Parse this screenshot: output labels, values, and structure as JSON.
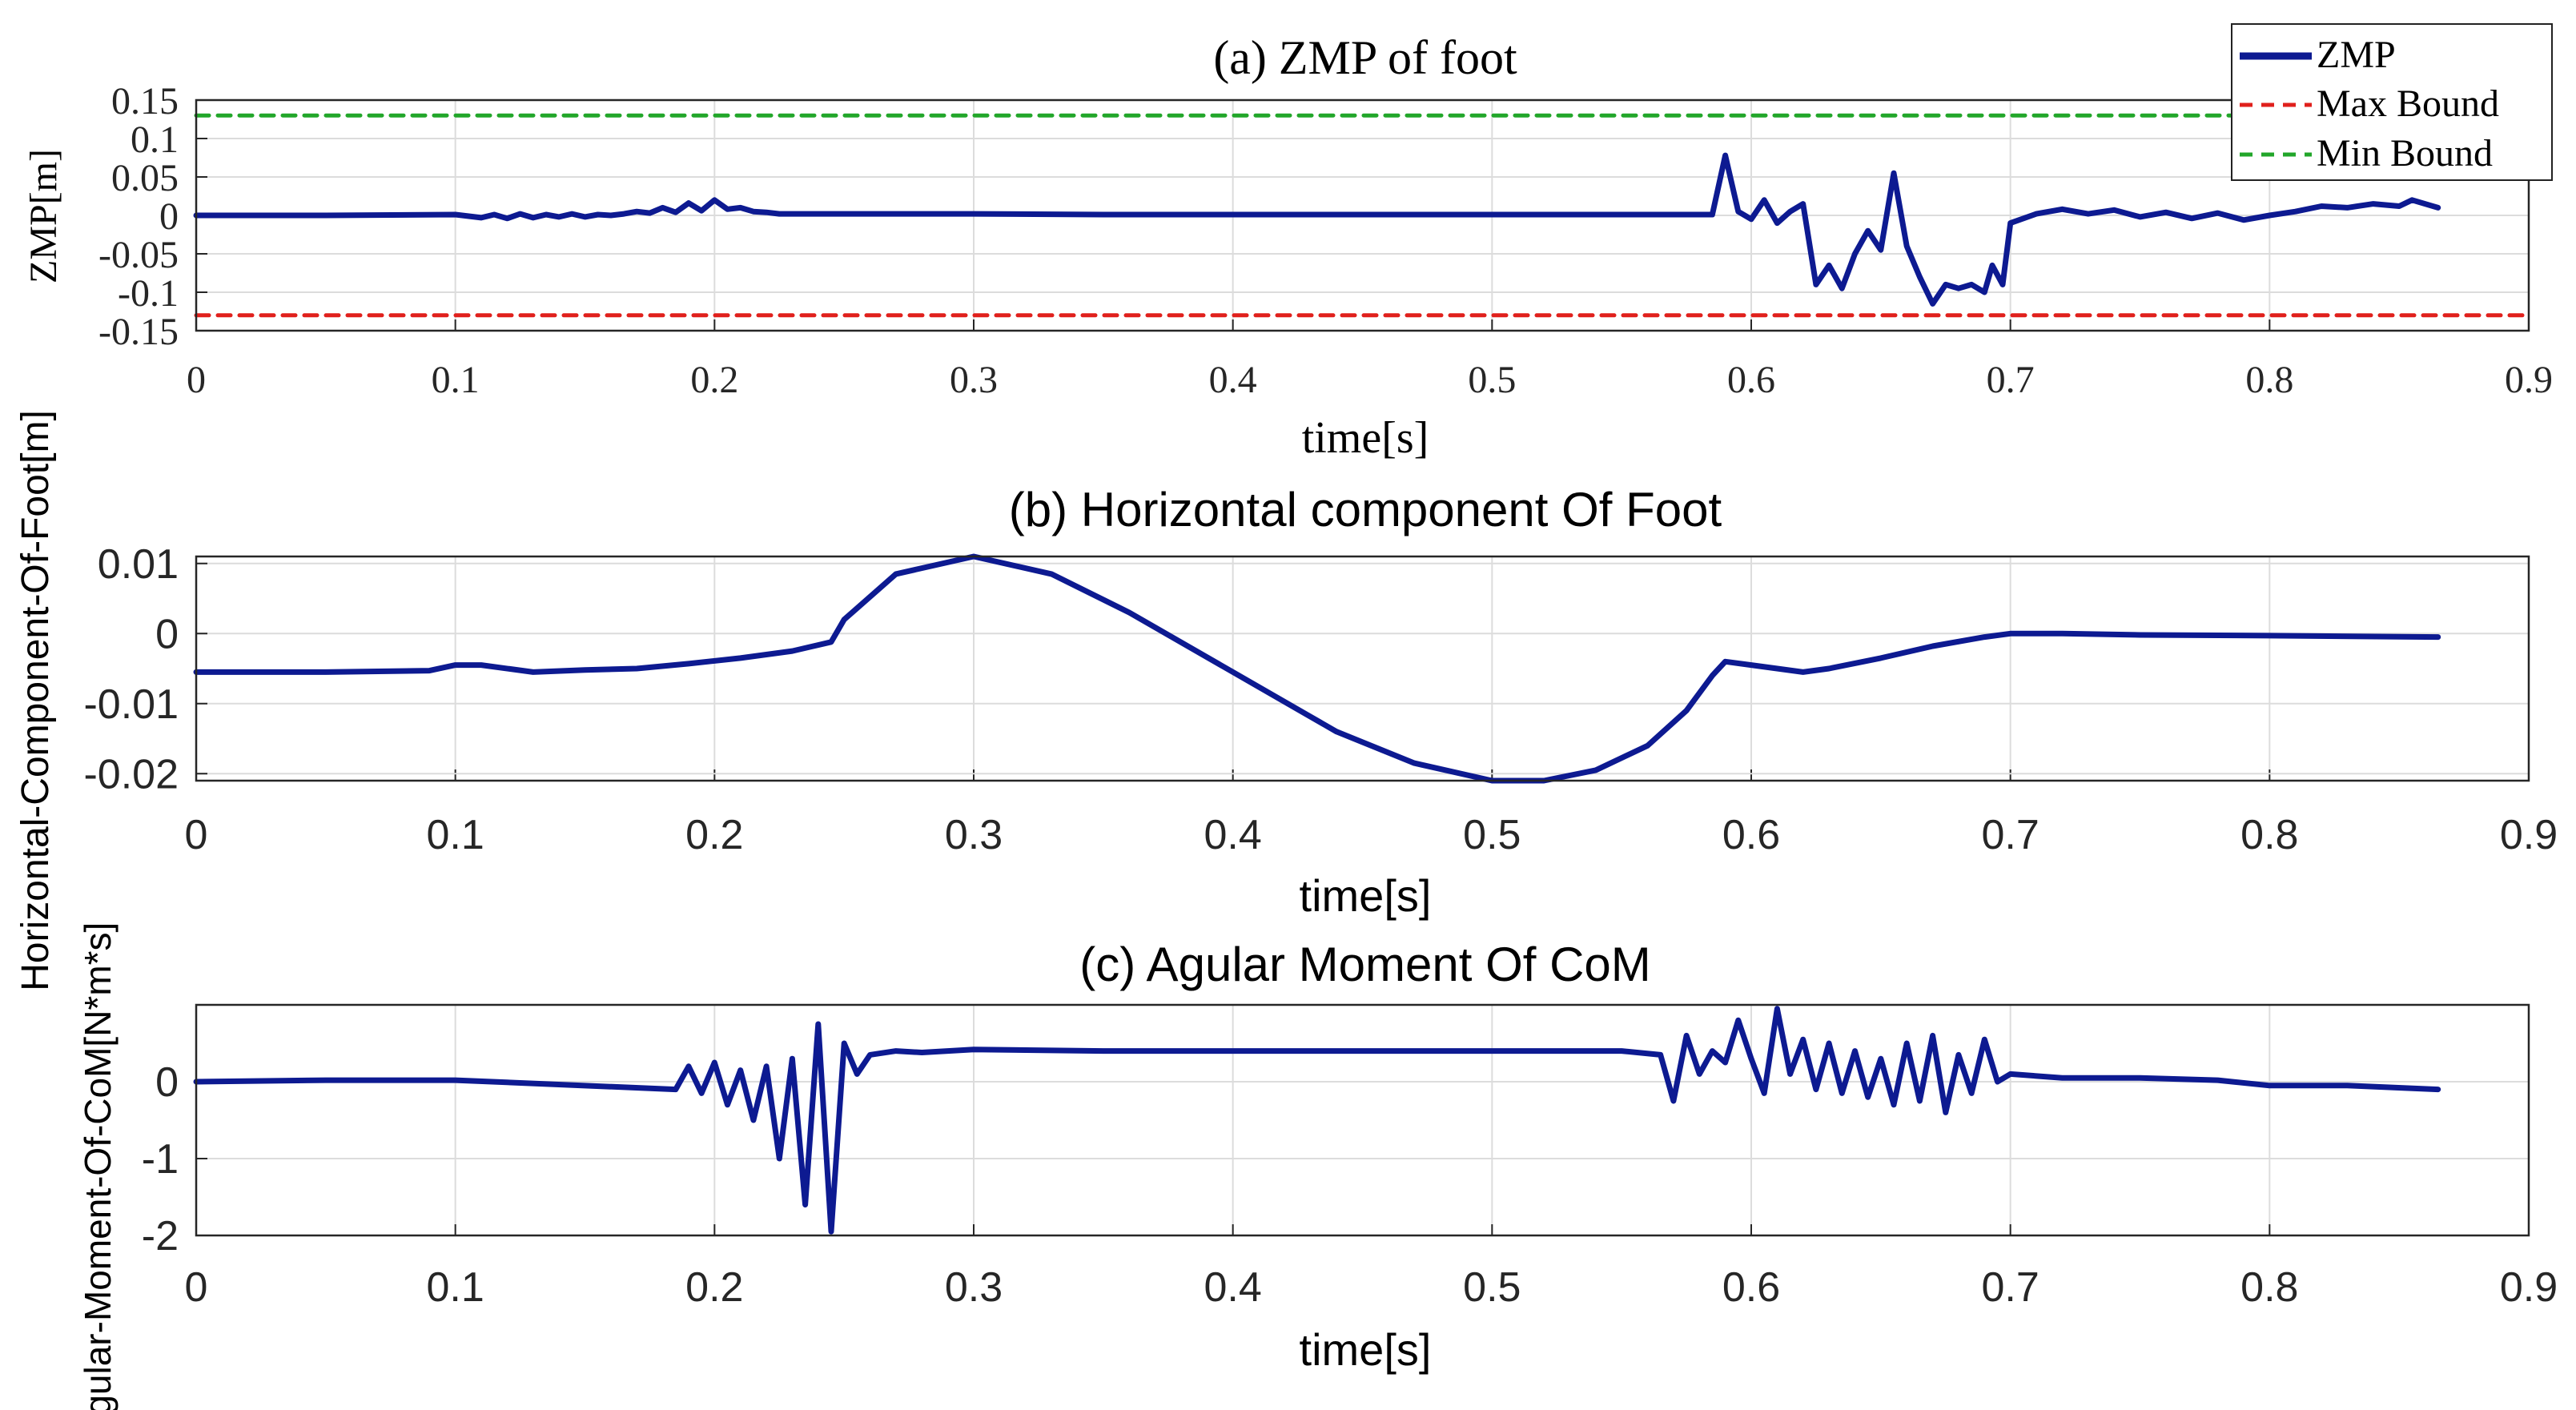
{
  "chart_data": [
    {
      "type": "line",
      "title": "(a) ZMP of foot",
      "xlabel": "time[s]",
      "ylabel": "ZMP[m]",
      "xlim": [
        0,
        0.9
      ],
      "ylim": [
        -0.15,
        0.15
      ],
      "xticks": [
        "0",
        "0.1",
        "0.2",
        "0.3",
        "0.4",
        "0.5",
        "0.6",
        "0.7",
        "0.8",
        "0.9"
      ],
      "yticks": [
        "0.15",
        "0.1",
        "0.05",
        "0",
        "-0.05",
        "-0.1",
        "-0.15"
      ],
      "ytick_values": [
        0.15,
        0.1,
        0.05,
        0,
        -0.05,
        -0.1,
        -0.15
      ],
      "grid": true,
      "legend": {
        "location": "top-right",
        "entries": [
          {
            "label": "ZMP",
            "color": "#0d1a91",
            "style": "solid"
          },
          {
            "label": "Max Bound",
            "color": "#e0201c",
            "style": "dashed"
          },
          {
            "label": "Min Bound",
            "color": "#22a62a",
            "style": "dashed"
          }
        ]
      },
      "series": [
        {
          "name": "ZMP",
          "color": "#0d1a91",
          "x": [
            0,
            0.05,
            0.1,
            0.11,
            0.115,
            0.12,
            0.125,
            0.13,
            0.135,
            0.14,
            0.145,
            0.15,
            0.155,
            0.16,
            0.165,
            0.17,
            0.175,
            0.18,
            0.185,
            0.19,
            0.195,
            0.2,
            0.205,
            0.21,
            0.215,
            0.22,
            0.225,
            0.25,
            0.3,
            0.35,
            0.4,
            0.45,
            0.5,
            0.55,
            0.585,
            0.59,
            0.595,
            0.6,
            0.605,
            0.61,
            0.615,
            0.62,
            0.625,
            0.63,
            0.635,
            0.64,
            0.645,
            0.65,
            0.655,
            0.66,
            0.665,
            0.67,
            0.675,
            0.68,
            0.685,
            0.69,
            0.693,
            0.697,
            0.7,
            0.71,
            0.72,
            0.73,
            0.74,
            0.75,
            0.76,
            0.77,
            0.78,
            0.79,
            0.8,
            0.81,
            0.82,
            0.83,
            0.84,
            0.85,
            0.855,
            0.865
          ],
          "values": [
            0,
            0,
            0.001,
            -0.003,
            0.001,
            -0.004,
            0.002,
            -0.003,
            0.001,
            -0.002,
            0.002,
            -0.002,
            0.001,
            0,
            0.002,
            0.005,
            0.003,
            0.01,
            0.004,
            0.016,
            0.006,
            0.02,
            0.008,
            0.01,
            0.005,
            0.004,
            0.002,
            0.002,
            0.002,
            0.001,
            0.001,
            0.001,
            0.001,
            0.001,
            0.001,
            0.078,
            0.005,
            -0.005,
            0.02,
            -0.01,
            0.005,
            0.015,
            -0.09,
            -0.065,
            -0.095,
            -0.05,
            -0.02,
            -0.045,
            0.055,
            -0.04,
            -0.08,
            -0.115,
            -0.09,
            -0.095,
            -0.09,
            -0.1,
            -0.065,
            -0.09,
            -0.01,
            0.002,
            0.008,
            0.002,
            0.007,
            -0.002,
            0.004,
            -0.004,
            0.003,
            -0.006,
            0,
            0.005,
            0.012,
            0.01,
            0.015,
            0.012,
            0.02,
            0.01
          ]
        },
        {
          "name": "Max Bound",
          "color": "#e0201c",
          "x": [
            0,
            0.9
          ],
          "values": [
            -0.13,
            -0.13
          ]
        },
        {
          "name": "Min Bound",
          "color": "#22a62a",
          "x": [
            0,
            0.9
          ],
          "values": [
            0.13,
            0.13
          ]
        }
      ]
    },
    {
      "type": "line",
      "title": "(b) Horizontal component Of Foot",
      "xlabel": "time[s]",
      "ylabel": "Horizontal-Component-Of-Foot[m]",
      "xlim": [
        0,
        0.9
      ],
      "ylim": [
        -0.021,
        0.011
      ],
      "xticks": [
        "0",
        "0.1",
        "0.2",
        "0.3",
        "0.4",
        "0.5",
        "0.6",
        "0.7",
        "0.8",
        "0.9"
      ],
      "yticks": [
        "0.01",
        "0",
        "-0.01",
        "-0.02"
      ],
      "ytick_values": [
        0.01,
        0,
        -0.01,
        -0.02
      ],
      "grid": true,
      "series": [
        {
          "name": "Horizontal component",
          "color": "#0d1a91",
          "x": [
            0,
            0.05,
            0.09,
            0.1,
            0.11,
            0.13,
            0.15,
            0.17,
            0.19,
            0.21,
            0.23,
            0.245,
            0.25,
            0.27,
            0.3,
            0.33,
            0.36,
            0.4,
            0.44,
            0.47,
            0.5,
            0.52,
            0.54,
            0.56,
            0.575,
            0.585,
            0.59,
            0.6,
            0.61,
            0.62,
            0.63,
            0.65,
            0.67,
            0.69,
            0.7,
            0.72,
            0.75,
            0.8,
            0.865
          ],
          "values": [
            -0.0055,
            -0.0055,
            -0.0053,
            -0.0045,
            -0.0045,
            -0.0055,
            -0.0052,
            -0.005,
            -0.0043,
            -0.0035,
            -0.0025,
            -0.0012,
            0.002,
            0.0085,
            0.011,
            0.0085,
            0.003,
            -0.0055,
            -0.014,
            -0.0185,
            -0.021,
            -0.021,
            -0.0195,
            -0.016,
            -0.011,
            -0.006,
            -0.004,
            -0.0045,
            -0.005,
            -0.0055,
            -0.005,
            -0.0035,
            -0.0018,
            -0.0005,
            0,
            0,
            -0.0002,
            -0.0003,
            -0.0005
          ]
        }
      ]
    },
    {
      "type": "line",
      "title": "(c) Agular Moment Of CoM",
      "xlabel": "time[s]",
      "ylabel": "Agular-Moment-Of-CoM[N*m*s]",
      "xlim": [
        0,
        0.9
      ],
      "ylim": [
        -2,
        1
      ],
      "xticks": [
        "0",
        "0.1",
        "0.2",
        "0.3",
        "0.4",
        "0.5",
        "0.6",
        "0.7",
        "0.8",
        "0.9"
      ],
      "yticks": [
        "0",
        "-1",
        "-2"
      ],
      "ytick_values": [
        0,
        -1,
        -2
      ],
      "grid": true,
      "series": [
        {
          "name": "Angular moment",
          "color": "#0d1a91",
          "x": [
            0,
            0.05,
            0.1,
            0.185,
            0.19,
            0.195,
            0.2,
            0.205,
            0.21,
            0.215,
            0.22,
            0.225,
            0.23,
            0.235,
            0.24,
            0.245,
            0.25,
            0.255,
            0.26,
            0.27,
            0.28,
            0.3,
            0.35,
            0.4,
            0.45,
            0.5,
            0.55,
            0.565,
            0.57,
            0.575,
            0.58,
            0.585,
            0.59,
            0.595,
            0.6,
            0.605,
            0.61,
            0.615,
            0.62,
            0.625,
            0.63,
            0.635,
            0.64,
            0.645,
            0.65,
            0.655,
            0.66,
            0.665,
            0.67,
            0.675,
            0.68,
            0.685,
            0.69,
            0.695,
            0.7,
            0.72,
            0.75,
            0.78,
            0.8,
            0.83,
            0.865
          ],
          "values": [
            0,
            0.02,
            0.02,
            -0.1,
            0.2,
            -0.15,
            0.25,
            -0.3,
            0.15,
            -0.5,
            0.2,
            -1.0,
            0.3,
            -1.6,
            0.75,
            -1.95,
            0.5,
            0.1,
            0.35,
            0.4,
            0.38,
            0.42,
            0.4,
            0.4,
            0.4,
            0.4,
            0.4,
            0.35,
            -0.25,
            0.6,
            0.1,
            0.4,
            0.25,
            0.8,
            0.3,
            -0.15,
            0.95,
            0.1,
            0.55,
            -0.1,
            0.5,
            -0.15,
            0.4,
            -0.2,
            0.3,
            -0.3,
            0.5,
            -0.25,
            0.6,
            -0.4,
            0.35,
            -0.15,
            0.55,
            0,
            0.1,
            0.05,
            0.05,
            0.02,
            -0.05,
            -0.05,
            -0.1
          ]
        }
      ]
    }
  ]
}
